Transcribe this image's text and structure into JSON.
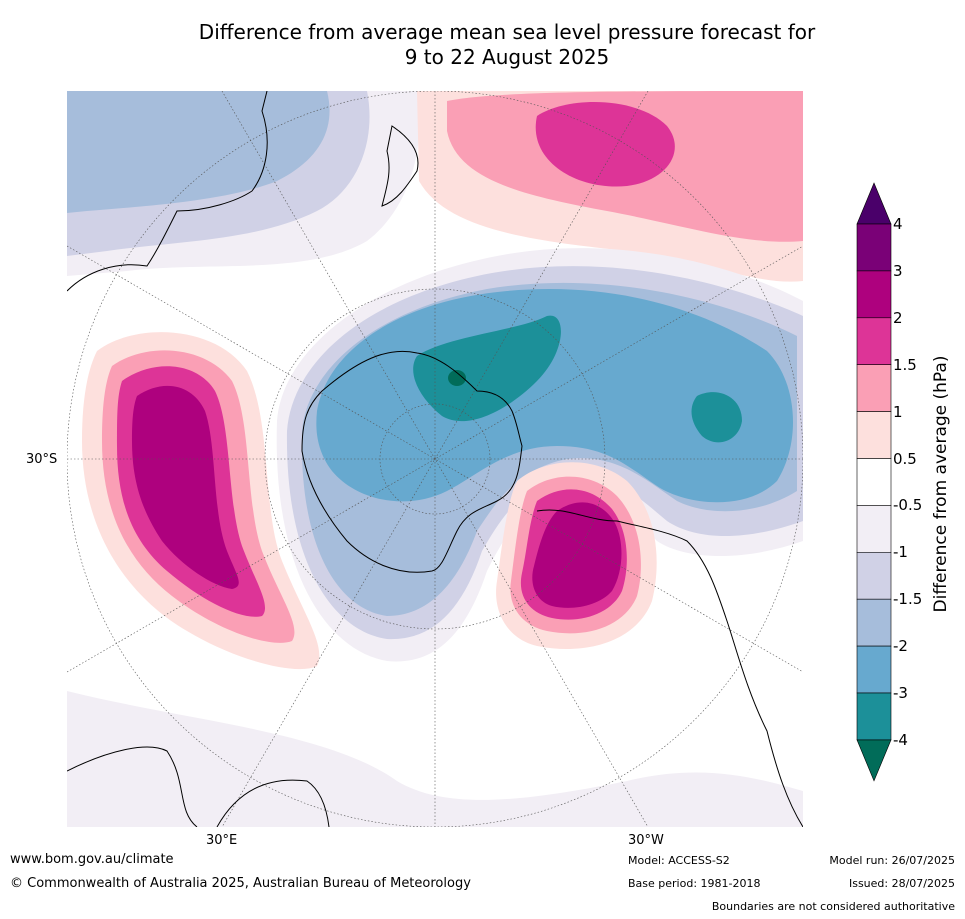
{
  "title_line1": "Difference from average mean sea level pressure forecast for",
  "title_line2": "9 to 22 August 2025",
  "map": {
    "projection": "south-polar-stereographic",
    "lat_label": "30°S",
    "lon_label_left": "30°E",
    "lon_label_right": "30°W",
    "land_outline_color": "#000000",
    "boundary_color": "#808080",
    "graticule_color": "#555555"
  },
  "colorbar": {
    "title": "Difference from average (hPa)",
    "tick_labels": [
      "4",
      "3",
      "2",
      "1.5",
      "1",
      "0.5",
      "-0.5",
      "-1",
      "-1.5",
      "-2",
      "-3",
      "-4"
    ],
    "bins": [
      {
        "range": "> 4",
        "color": "#4a006a"
      },
      {
        "range": "3 to 4",
        "color": "#7a0177"
      },
      {
        "range": "2 to 3",
        "color": "#ae017e"
      },
      {
        "range": "1.5 to 2",
        "color": "#dd3497"
      },
      {
        "range": "1 to 1.5",
        "color": "#fa9fb5"
      },
      {
        "range": "0.5 to 1",
        "color": "#fde0dd"
      },
      {
        "range": "-0.5 to 0.5",
        "color": "#ffffff"
      },
      {
        "range": "-1 to -0.5",
        "color": "#f2eef5"
      },
      {
        "range": "-1.5 to -1",
        "color": "#d0d1e6"
      },
      {
        "range": "-2 to -1.5",
        "color": "#a6bddb"
      },
      {
        "range": "-3 to -2",
        "color": "#67a9cf"
      },
      {
        "range": "-4 to -3",
        "color": "#1c9099"
      },
      {
        "range": "< -4",
        "color": "#016c59"
      }
    ]
  },
  "footer": {
    "website": "www.bom.gov.au/climate",
    "copyright": "© Commonwealth of Australia 2025, Australian Bureau of Meteorology",
    "model": "Model: ACCESS-S2",
    "base_period": "Base period: 1981-2018",
    "model_run": "Model run: 26/07/2025",
    "issued": "Issued: 28/07/2025",
    "disclaimer": "Boundaries are not considered authoritative"
  }
}
